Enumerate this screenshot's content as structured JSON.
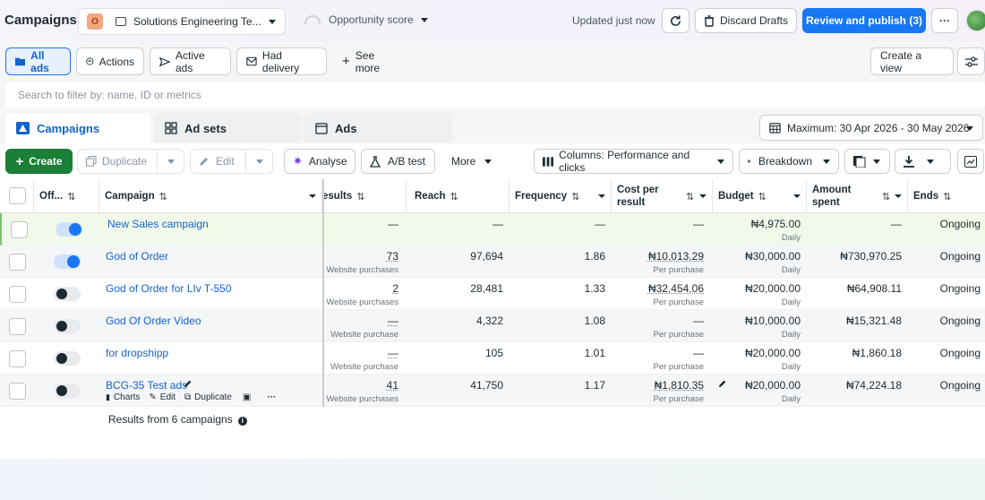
{
  "header": {
    "title": "Campaigns",
    "account": {
      "badge": "O",
      "name": "Solutions Engineering Te..."
    },
    "opportunity": "Opportunity score",
    "updated": "Updated just now",
    "discard": "Discard Drafts",
    "publish": "Review and publish (3)",
    "more": "···"
  },
  "views": {
    "items": [
      {
        "label": "All ads",
        "icon": "folder-icon"
      },
      {
        "label": "Actions",
        "icon": "actions-icon"
      },
      {
        "label": "Active ads",
        "icon": "send-icon"
      },
      {
        "label": "Had delivery",
        "icon": "mail-icon"
      },
      {
        "label": "See more",
        "icon": "plus-icon"
      }
    ],
    "create_view": "Create a view"
  },
  "search": {
    "placeholder": "Search to filter by: name, ID or metrics"
  },
  "levels": {
    "campaigns": "Campaigns",
    "adsets": "Ad sets",
    "ads": "Ads",
    "date_range": "Maximum: 30 Apr 2026 - 30 May 2026"
  },
  "toolbar": {
    "create": "Create",
    "duplicate": "Duplicate",
    "edit": "Edit",
    "analyse": "Analyse",
    "abtest": "A/B test",
    "more": "More",
    "columns": "Columns: Performance and clicks",
    "breakdown": "Breakdown"
  },
  "table": {
    "headers": {
      "off": "Off...",
      "campaign": "Campaign",
      "results": "esults",
      "reach": "Reach",
      "frequency": "Frequency",
      "cost1": "Cost per",
      "cost2": "result",
      "budget": "Budget",
      "amount1": "Amount",
      "amount2": "spent",
      "ends": "Ends"
    },
    "rows": [
      {
        "name": "New Sales campaign",
        "results": "—",
        "results_sub": "",
        "reach": "—",
        "frequency": "—",
        "cost": "—",
        "cost_sub": "",
        "budget": "₦4,975.00",
        "budget_sub": "Daily",
        "spent": "—",
        "ends": "Ongoing",
        "toggle": "on"
      },
      {
        "name": "God of Order",
        "results": "73",
        "results_sub": "Website purchases",
        "reach": "97,694",
        "frequency": "1.86",
        "cost": "₦10,013.29",
        "cost_sub": "Per purchase",
        "budget": "₦30,000.00",
        "budget_sub": "Daily",
        "spent": "₦730,970.25",
        "ends": "Ongoing",
        "toggle": "on"
      },
      {
        "name": "God of Order for LIv T-550",
        "results": "2",
        "results_sub": "Website purchases",
        "reach": "28,481",
        "frequency": "1.33",
        "cost": "₦32,454.06",
        "cost_sub": "Per purchase",
        "budget": "₦20,000.00",
        "budget_sub": "Daily",
        "spent": "₦64,908.11",
        "ends": "Ongoing",
        "toggle": "off"
      },
      {
        "name": "God Of Order Video",
        "results": "—",
        "results_sub": "Website purchase",
        "reach": "4,322",
        "frequency": "1.08",
        "cost": "—",
        "cost_sub": "Per purchase",
        "budget": "₦10,000.00",
        "budget_sub": "Daily",
        "spent": "₦15,321.48",
        "ends": "Ongoing",
        "toggle": "off"
      },
      {
        "name": "for dropshipp",
        "results": "—",
        "results_sub": "Website purchase",
        "reach": "105",
        "frequency": "1.01",
        "cost": "—",
        "cost_sub": "Per purchase",
        "budget": "₦20,000.00",
        "budget_sub": "Daily",
        "spent": "₦1,860.18",
        "ends": "Ongoing",
        "toggle": "off"
      },
      {
        "name": "BCG-35 Test ads",
        "results": "41",
        "results_sub": "Website purchases",
        "reach": "41,750",
        "frequency": "1.17",
        "cost": "₦1,810.35",
        "cost_sub": "Per purchase",
        "budget": "₦20,000.00",
        "budget_sub": "Daily",
        "spent": "₦74,224.18",
        "ends": "Ongoing",
        "toggle": "off"
      }
    ],
    "row_actions": {
      "charts": "Charts",
      "edit": "Edit",
      "duplicate": "Duplicate",
      "more": "···"
    },
    "footer": "Results from 6 campaigns"
  }
}
